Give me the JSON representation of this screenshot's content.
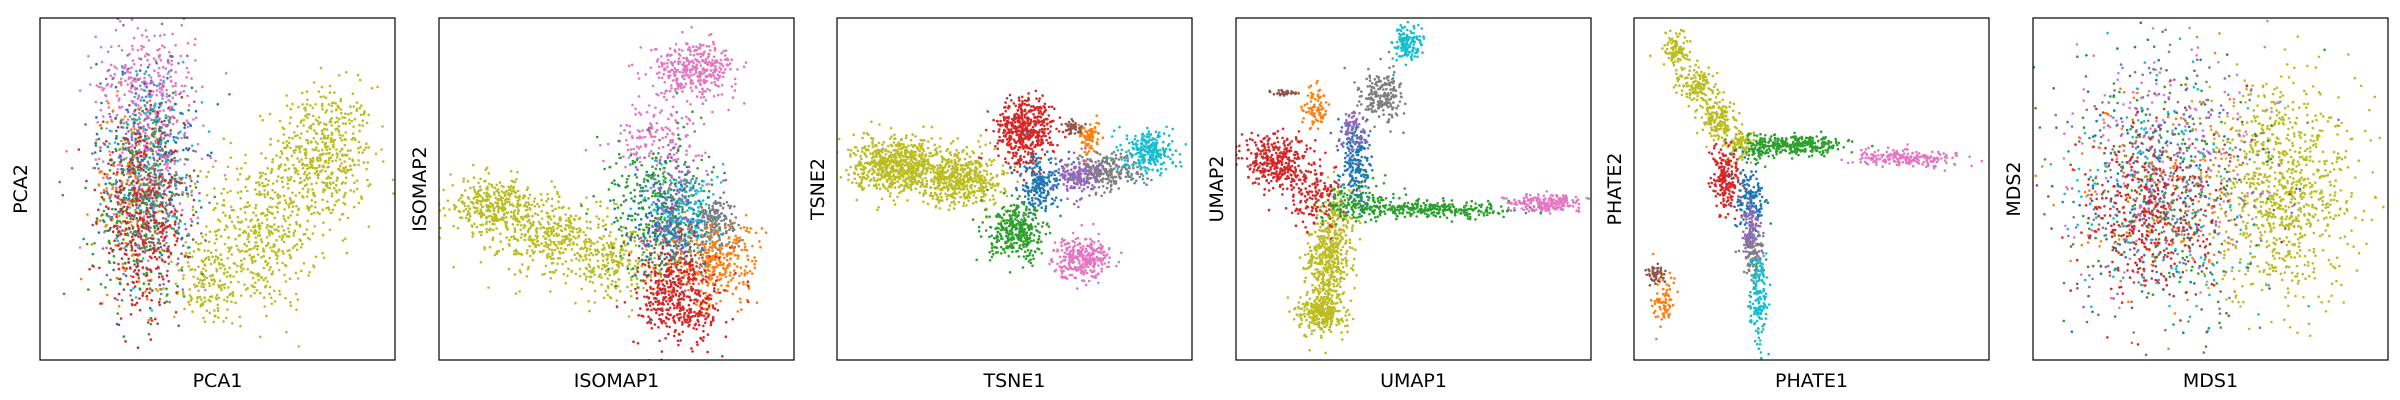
{
  "palette": [
    "#1f77b4",
    "#ff7f0e",
    "#2ca02c",
    "#d62728",
    "#9467bd",
    "#8c564b",
    "#e377c2",
    "#7f7f7f",
    "#bcbd22",
    "#17becf"
  ],
  "chart_data": [
    {
      "type": "scatter",
      "title": "",
      "xlabel": "PCA1",
      "ylabel": "PCA2",
      "ticks": false,
      "xlim": [
        0,
        100
      ],
      "ylim": [
        0,
        100
      ],
      "series": [
        {
          "color": "#bcbd22",
          "clusters": [
            {
              "x": 80,
              "y": 60,
              "sx": 7,
              "sy": 10,
              "n": 500
            },
            {
              "x": 62,
              "y": 37,
              "sx": 8,
              "sy": 11,
              "n": 450
            },
            {
              "x": 47,
              "y": 22,
              "sx": 5,
              "sy": 6,
              "n": 150
            }
          ]
        },
        {
          "color": "#e377c2",
          "clusters": [
            {
              "x": 30,
              "y": 80,
              "sx": 7,
              "sy": 9,
              "n": 300
            },
            {
              "x": 32,
              "y": 55,
              "sx": 7,
              "sy": 12,
              "n": 150
            }
          ]
        },
        {
          "color": "#9467bd",
          "clusters": [
            {
              "x": 30,
              "y": 60,
              "sx": 7,
              "sy": 16,
              "n": 200
            }
          ]
        },
        {
          "color": "#1f77b4",
          "clusters": [
            {
              "x": 30,
              "y": 55,
              "sx": 7,
              "sy": 17,
              "n": 200
            }
          ]
        },
        {
          "color": "#17becf",
          "clusters": [
            {
              "x": 31,
              "y": 58,
              "sx": 6,
              "sy": 15,
              "n": 150
            }
          ]
        },
        {
          "color": "#ff7f0e",
          "clusters": [
            {
              "x": 25,
              "y": 48,
              "sx": 5,
              "sy": 14,
              "n": 150
            }
          ]
        },
        {
          "color": "#2ca02c",
          "clusters": [
            {
              "x": 28,
              "y": 45,
              "sx": 7,
              "sy": 15,
              "n": 250
            }
          ]
        },
        {
          "color": "#8c564b",
          "clusters": [
            {
              "x": 30,
              "y": 45,
              "sx": 6,
              "sy": 14,
              "n": 100
            }
          ]
        },
        {
          "color": "#7f7f7f",
          "clusters": [
            {
              "x": 32,
              "y": 45,
              "sx": 6,
              "sy": 14,
              "n": 100
            }
          ]
        },
        {
          "color": "#d62728",
          "clusters": [
            {
              "x": 29,
              "y": 40,
              "sx": 6,
              "sy": 13,
              "n": 350
            }
          ]
        }
      ]
    },
    {
      "type": "scatter",
      "title": "",
      "xlabel": "ISOMAP1",
      "ylabel": "ISOMAP2",
      "ticks": false,
      "xlim": [
        0,
        100
      ],
      "ylim": [
        0,
        100
      ],
      "series": [
        {
          "color": "#bcbd22",
          "clusters": [
            {
              "x": 15,
              "y": 45,
              "sx": 6,
              "sy": 4,
              "n": 350
            },
            {
              "x": 33,
              "y": 36,
              "sx": 8,
              "sy": 6,
              "n": 400
            },
            {
              "x": 50,
              "y": 27,
              "sx": 6,
              "sy": 5,
              "n": 200
            }
          ]
        },
        {
          "color": "#e377c2",
          "clusters": [
            {
              "x": 72,
              "y": 85,
              "sx": 6,
              "sy": 4,
              "n": 350
            },
            {
              "x": 62,
              "y": 65,
              "sx": 7,
              "sy": 5,
              "n": 150
            }
          ]
        },
        {
          "color": "#2ca02c",
          "clusters": [
            {
              "x": 62,
              "y": 45,
              "sx": 7,
              "sy": 10,
              "n": 300
            }
          ]
        },
        {
          "color": "#17becf",
          "clusters": [
            {
              "x": 70,
              "y": 42,
              "sx": 5,
              "sy": 7,
              "n": 200
            }
          ]
        },
        {
          "color": "#1f77b4",
          "clusters": [
            {
              "x": 64,
              "y": 40,
              "sx": 6,
              "sy": 8,
              "n": 200
            }
          ]
        },
        {
          "color": "#9467bd",
          "clusters": [
            {
              "x": 66,
              "y": 46,
              "sx": 5,
              "sy": 9,
              "n": 150
            }
          ]
        },
        {
          "color": "#7f7f7f",
          "clusters": [
            {
              "x": 78,
              "y": 40,
              "sx": 3,
              "sy": 4,
              "n": 150
            }
          ]
        },
        {
          "color": "#8c564b",
          "clusters": [
            {
              "x": 66,
              "y": 32,
              "sx": 5,
              "sy": 5,
              "n": 80
            }
          ]
        },
        {
          "color": "#ff7f0e",
          "clusters": [
            {
              "x": 78,
              "y": 28,
              "sx": 6,
              "sy": 6,
              "n": 300
            }
          ]
        },
        {
          "color": "#d62728",
          "clusters": [
            {
              "x": 68,
              "y": 18,
              "sx": 6,
              "sy": 7,
              "n": 450
            }
          ]
        }
      ]
    },
    {
      "type": "scatter",
      "title": "",
      "xlabel": "TSNE1",
      "ylabel": "TSNE2",
      "ticks": false,
      "xlim": [
        0,
        100
      ],
      "ylim": [
        0,
        100
      ],
      "series": [
        {
          "color": "#bcbd22",
          "clusters": [
            {
              "x": 17,
              "y": 57,
              "sx": 6,
              "sy": 4,
              "n": 700
            },
            {
              "x": 35,
              "y": 53,
              "sx": 6,
              "sy": 4,
              "n": 500
            }
          ]
        },
        {
          "color": "#d62728",
          "clusters": [
            {
              "x": 53,
              "y": 67,
              "sx": 4,
              "sy": 5,
              "n": 500
            }
          ]
        },
        {
          "color": "#1f77b4",
          "clusters": [
            {
              "x": 57,
              "y": 51,
              "sx": 3,
              "sy": 4,
              "n": 200
            }
          ]
        },
        {
          "color": "#2ca02c",
          "clusters": [
            {
              "x": 51,
              "y": 37,
              "sx": 4,
              "sy": 4,
              "n": 350
            }
          ]
        },
        {
          "color": "#e377c2",
          "clusters": [
            {
              "x": 69,
              "y": 30,
              "sx": 4,
              "sy": 3,
              "n": 300
            }
          ]
        },
        {
          "color": "#7f7f7f",
          "clusters": [
            {
              "x": 76,
              "y": 55,
              "sx": 5,
              "sy": 2.5,
              "n": 250
            }
          ]
        },
        {
          "color": "#9467bd",
          "clusters": [
            {
              "x": 68,
              "y": 54,
              "sx": 3,
              "sy": 3,
              "n": 150
            }
          ]
        },
        {
          "color": "#17becf",
          "clusters": [
            {
              "x": 88,
              "y": 61,
              "sx": 3.5,
              "sy": 3,
              "n": 250
            }
          ]
        },
        {
          "color": "#ff7f0e",
          "clusters": [
            {
              "x": 71,
              "y": 65,
              "sx": 1.5,
              "sy": 2.5,
              "n": 80
            }
          ]
        },
        {
          "color": "#8c564b",
          "clusters": [
            {
              "x": 67,
              "y": 68,
              "sx": 1.5,
              "sy": 1,
              "n": 40
            }
          ]
        }
      ]
    },
    {
      "type": "scatter",
      "title": "",
      "xlabel": "UMAP1",
      "ylabel": "UMAP2",
      "ticks": false,
      "xlim": [
        0,
        100
      ],
      "ylim": [
        0,
        100
      ],
      "series": [
        {
          "color": "#bcbd22",
          "clusters": [
            {
              "x": 24,
              "y": 14,
              "sx": 3,
              "sy": 3,
              "n": 300
            },
            {
              "x": 26,
              "y": 28,
              "sx": 3,
              "sy": 6,
              "n": 350
            },
            {
              "x": 28,
              "y": 40,
              "sx": 3,
              "sy": 5,
              "n": 150
            }
          ]
        },
        {
          "color": "#d62728",
          "clusters": [
            {
              "x": 11,
              "y": 58,
              "sx": 5,
              "sy": 4,
              "n": 350
            },
            {
              "x": 22,
              "y": 48,
              "sx": 4,
              "sy": 4,
              "n": 150
            }
          ]
        },
        {
          "color": "#2ca02c",
          "clusters": [
            {
              "x": 55,
              "y": 44,
              "sx": 12,
              "sy": 1.2,
              "n": 300
            },
            {
              "x": 34,
              "y": 46,
              "sx": 5,
              "sy": 3,
              "n": 150
            }
          ]
        },
        {
          "color": "#e377c2",
          "clusters": [
            {
              "x": 88,
              "y": 46,
              "sx": 5,
              "sy": 1.2,
              "n": 200
            }
          ]
        },
        {
          "color": "#1f77b4",
          "clusters": [
            {
              "x": 34,
              "y": 58,
              "sx": 2,
              "sy": 6,
              "n": 200
            }
          ]
        },
        {
          "color": "#9467bd",
          "clusters": [
            {
              "x": 33,
              "y": 67,
              "sx": 2,
              "sy": 3,
              "n": 80
            }
          ]
        },
        {
          "color": "#7f7f7f",
          "clusters": [
            {
              "x": 41,
              "y": 77,
              "sx": 3,
              "sy": 4,
              "n": 200
            }
          ]
        },
        {
          "color": "#17becf",
          "clusters": [
            {
              "x": 48,
              "y": 92,
              "sx": 2,
              "sy": 3,
              "n": 150
            }
          ]
        },
        {
          "color": "#ff7f0e",
          "clusters": [
            {
              "x": 22,
              "y": 74,
              "sx": 2,
              "sy": 3,
              "n": 80
            }
          ]
        },
        {
          "color": "#8c564b",
          "clusters": [
            {
              "x": 14,
              "y": 78,
              "sx": 2.5,
              "sy": 0.5,
              "n": 30
            }
          ]
        }
      ]
    },
    {
      "type": "scatter",
      "title": "",
      "xlabel": "PHATE1",
      "ylabel": "PHATE2",
      "ticks": false,
      "xlim": [
        0,
        100
      ],
      "ylim": [
        0,
        100
      ],
      "series": [
        {
          "color": "#bcbd22",
          "clusters": [
            {
              "x": 12,
              "y": 90,
              "sx": 2,
              "sy": 3,
              "n": 100
            },
            {
              "x": 18,
              "y": 80,
              "sx": 2.5,
              "sy": 3,
              "n": 150
            },
            {
              "x": 24,
              "y": 70,
              "sx": 2.5,
              "sy": 3,
              "n": 150
            },
            {
              "x": 30,
              "y": 63,
              "sx": 2,
              "sy": 2,
              "n": 100
            }
          ]
        },
        {
          "color": "#2ca02c",
          "clusters": [
            {
              "x": 47,
              "y": 63,
              "sx": 6,
              "sy": 1.5,
              "n": 250
            },
            {
              "x": 36,
              "y": 62,
              "sx": 3,
              "sy": 2,
              "n": 100
            }
          ]
        },
        {
          "color": "#e377c2",
          "clusters": [
            {
              "x": 77,
              "y": 59,
              "sx": 8,
              "sy": 1.2,
              "n": 200
            }
          ]
        },
        {
          "color": "#d62728",
          "clusters": [
            {
              "x": 26,
              "y": 52,
              "sx": 2,
              "sy": 5,
              "n": 200
            }
          ]
        },
        {
          "color": "#1f77b4",
          "clusters": [
            {
              "x": 33,
              "y": 47,
              "sx": 2,
              "sy": 5,
              "n": 150
            }
          ]
        },
        {
          "color": "#9467bd",
          "clusters": [
            {
              "x": 33,
              "y": 38,
              "sx": 1.5,
              "sy": 4,
              "n": 100
            }
          ]
        },
        {
          "color": "#7f7f7f",
          "clusters": [
            {
              "x": 34,
              "y": 30,
              "sx": 1.5,
              "sy": 4,
              "n": 100
            }
          ]
        },
        {
          "color": "#17becf",
          "clusters": [
            {
              "x": 35,
              "y": 18,
              "sx": 1.2,
              "sy": 6,
              "n": 150
            }
          ]
        },
        {
          "color": "#ff7f0e",
          "clusters": [
            {
              "x": 8,
              "y": 18,
              "sx": 2,
              "sy": 4,
              "n": 80
            }
          ]
        },
        {
          "color": "#8c564b",
          "clusters": [
            {
              "x": 6,
              "y": 25,
              "sx": 1.5,
              "sy": 1.5,
              "n": 50
            }
          ]
        }
      ]
    },
    {
      "type": "scatter",
      "title": "",
      "xlabel": "MDS1",
      "ylabel": "MDS2",
      "ticks": false,
      "xlim": [
        0,
        100
      ],
      "ylim": [
        0,
        100
      ],
      "series": [
        {
          "color": "#bcbd22",
          "clusters": [
            {
              "x": 70,
              "y": 50,
              "sx": 10,
              "sy": 16,
              "n": 900
            }
          ]
        },
        {
          "color": "#e377c2",
          "clusters": [
            {
              "x": 38,
              "y": 62,
              "sx": 14,
              "sy": 18,
              "n": 200
            }
          ]
        },
        {
          "color": "#1f77b4",
          "clusters": [
            {
              "x": 36,
              "y": 52,
              "sx": 14,
              "sy": 18,
              "n": 180
            }
          ]
        },
        {
          "color": "#2ca02c",
          "clusters": [
            {
              "x": 35,
              "y": 48,
              "sx": 14,
              "sy": 18,
              "n": 200
            }
          ]
        },
        {
          "color": "#9467bd",
          "clusters": [
            {
              "x": 38,
              "y": 55,
              "sx": 14,
              "sy": 18,
              "n": 150
            }
          ]
        },
        {
          "color": "#ff7f0e",
          "clusters": [
            {
              "x": 34,
              "y": 50,
              "sx": 14,
              "sy": 18,
              "n": 150
            }
          ]
        },
        {
          "color": "#7f7f7f",
          "clusters": [
            {
              "x": 38,
              "y": 48,
              "sx": 14,
              "sy": 18,
              "n": 150
            }
          ]
        },
        {
          "color": "#17becf",
          "clusters": [
            {
              "x": 37,
              "y": 50,
              "sx": 14,
              "sy": 18,
              "n": 150
            }
          ]
        },
        {
          "color": "#8c564b",
          "clusters": [
            {
              "x": 36,
              "y": 47,
              "sx": 14,
              "sy": 18,
              "n": 100
            }
          ]
        },
        {
          "color": "#d62728",
          "clusters": [
            {
              "x": 32,
              "y": 42,
              "sx": 9,
              "sy": 12,
              "n": 350
            }
          ]
        }
      ]
    }
  ]
}
